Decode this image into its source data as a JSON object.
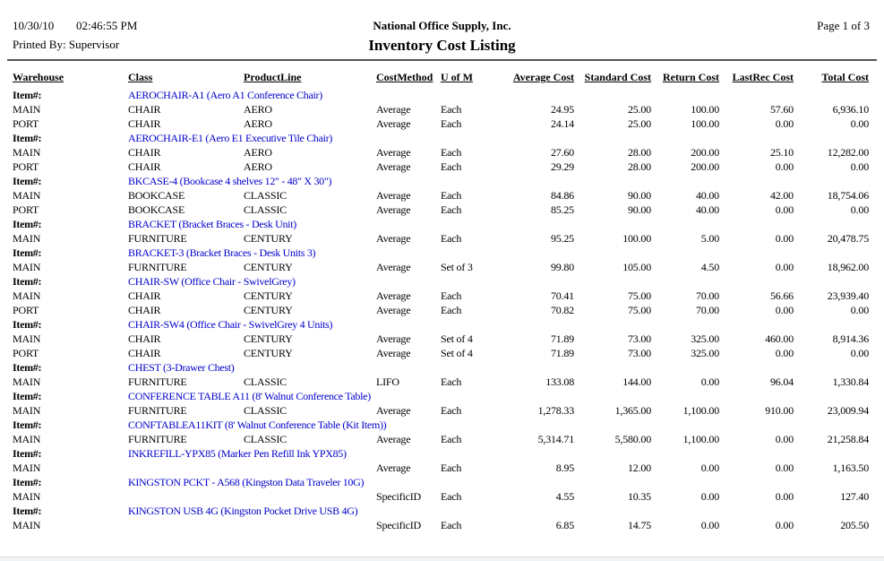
{
  "report": {
    "date": "10/30/10",
    "time": "02:46:55 PM",
    "printed_by": "Printed By: Supervisor",
    "company": "National Office Supply, Inc.",
    "title": "Inventory Cost Listing",
    "page": "Page 1 of 3"
  },
  "colors": {
    "item_link_blue": "#0000CC",
    "text": "#000000",
    "rule_gray": "#555555"
  },
  "table": {
    "item_label": "Item#:",
    "headers": [
      "Warehouse",
      "Class",
      "ProductLine",
      "CostMethod",
      "U of M",
      "Average Cost",
      "Standard Cost",
      "Return Cost",
      "LastRec Cost",
      "Total Cost"
    ],
    "items": [
      {
        "description": "AEROCHAIR-A1 (Aero A1 Conference Chair)",
        "rows": [
          [
            "MAIN",
            "CHAIR",
            "AERO",
            "Average",
            "Each",
            "24.95",
            "25.00",
            "100.00",
            "57.60",
            "6,936.10"
          ],
          [
            "PORT",
            "CHAIR",
            "AERO",
            "Average",
            "Each",
            "24.14",
            "25.00",
            "100.00",
            "0.00",
            "0.00"
          ]
        ]
      },
      {
        "description": "AEROCHAIR-E1 (Aero E1 Executive Tile Chair)",
        "rows": [
          [
            "MAIN",
            "CHAIR",
            "AERO",
            "Average",
            "Each",
            "27.60",
            "28.00",
            "200.00",
            "25.10",
            "12,282.00"
          ],
          [
            "PORT",
            "CHAIR",
            "AERO",
            "Average",
            "Each",
            "29.29",
            "28.00",
            "200.00",
            "0.00",
            "0.00"
          ]
        ]
      },
      {
        "description": "BKCASE-4 (Bookcase 4 shelves 12\" - 48\" X 30\")",
        "rows": [
          [
            "MAIN",
            "BOOKCASE",
            "CLASSIC",
            "Average",
            "Each",
            "84.86",
            "90.00",
            "40.00",
            "42.00",
            "18,754.06"
          ],
          [
            "PORT",
            "BOOKCASE",
            "CLASSIC",
            "Average",
            "Each",
            "85.25",
            "90.00",
            "40.00",
            "0.00",
            "0.00"
          ]
        ]
      },
      {
        "description": "BRACKET (Bracket Braces - Desk Unit)",
        "rows": [
          [
            "MAIN",
            "FURNITURE",
            "CENTURY",
            "Average",
            "Each",
            "95.25",
            "100.00",
            "5.00",
            "0.00",
            "20,478.75"
          ]
        ]
      },
      {
        "description": "BRACKET-3 (Bracket Braces - Desk Units 3)",
        "rows": [
          [
            "MAIN",
            "FURNITURE",
            "CENTURY",
            "Average",
            "Set of 3",
            "99.80",
            "105.00",
            "4.50",
            "0.00",
            "18,962.00"
          ]
        ]
      },
      {
        "description": "CHAIR-SW (Office Chair - SwivelGrey)",
        "rows": [
          [
            "MAIN",
            "CHAIR",
            "CENTURY",
            "Average",
            "Each",
            "70.41",
            "75.00",
            "70.00",
            "56.66",
            "23,939.40"
          ],
          [
            "PORT",
            "CHAIR",
            "CENTURY",
            "Average",
            "Each",
            "70.82",
            "75.00",
            "70.00",
            "0.00",
            "0.00"
          ]
        ]
      },
      {
        "description": "CHAIR-SW4 (Office Chair - SwivelGrey 4 Units)",
        "rows": [
          [
            "MAIN",
            "CHAIR",
            "CENTURY",
            "Average",
            "Set of 4",
            "71.89",
            "73.00",
            "325.00",
            "460.00",
            "8,914.36"
          ],
          [
            "PORT",
            "CHAIR",
            "CENTURY",
            "Average",
            "Set of 4",
            "71.89",
            "73.00",
            "325.00",
            "0.00",
            "0.00"
          ]
        ]
      },
      {
        "description": "CHEST (3-Drawer Chest)",
        "rows": [
          [
            "MAIN",
            "FURNITURE",
            "CLASSIC",
            "LIFO",
            "Each",
            "133.08",
            "144.00",
            "0.00",
            "96.04",
            "1,330.84"
          ]
        ]
      },
      {
        "description": "CONFERENCE TABLE A11 (8' Walnut Conference Table)",
        "rows": [
          [
            "MAIN",
            "FURNITURE",
            "CLASSIC",
            "Average",
            "Each",
            "1,278.33",
            "1,365.00",
            "1,100.00",
            "910.00",
            "23,009.94"
          ]
        ]
      },
      {
        "description": "CONFTABLEA11KIT (8' Walnut Conference Table (Kit Item))",
        "rows": [
          [
            "MAIN",
            "FURNITURE",
            "CLASSIC",
            "Average",
            "Each",
            "5,314.71",
            "5,580.00",
            "1,100.00",
            "0.00",
            "21,258.84"
          ]
        ]
      },
      {
        "description": "INKREFILL-YPX85 (Marker Pen Refill Ink YPX85)",
        "rows": [
          [
            "MAIN",
            "",
            "",
            "Average",
            "Each",
            "8.95",
            "12.00",
            "0.00",
            "0.00",
            "1,163.50"
          ]
        ]
      },
      {
        "description": "KINGSTON PCKT - A568 (Kingston Data Traveler 10G)",
        "rows": [
          [
            "MAIN",
            "",
            "",
            "SpecificID",
            "Each",
            "4.55",
            "10.35",
            "0.00",
            "0.00",
            "127.40"
          ]
        ]
      },
      {
        "description": "KINGSTON USB 4G (Kingston Pocket Drive USB 4G)",
        "rows": [
          [
            "MAIN",
            "",
            "",
            "SpecificID",
            "Each",
            "6.85",
            "14.75",
            "0.00",
            "0.00",
            "205.50"
          ]
        ]
      }
    ]
  }
}
